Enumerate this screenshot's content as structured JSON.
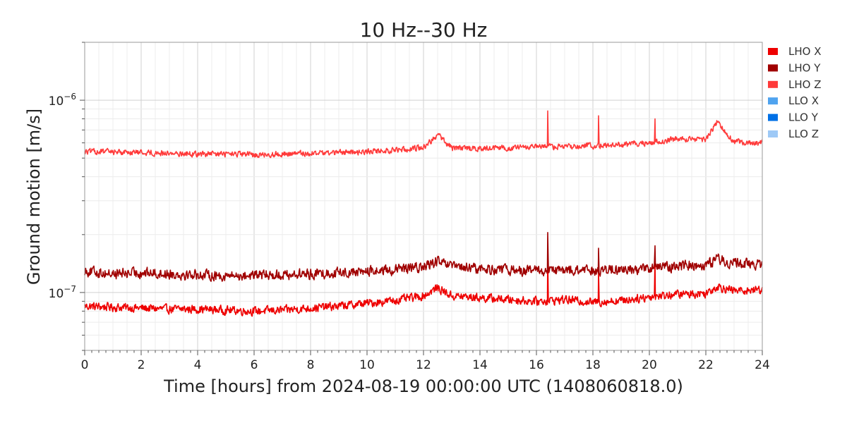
{
  "chart_data": {
    "type": "line",
    "title": "10 Hz--30 Hz",
    "xlabel": "Time [hours] from 2024-08-19 00:00:00 UTC (1408060818.0)",
    "ylabel": "Ground motion [m/s]",
    "xlim": [
      0,
      24
    ],
    "ylim": [
      5e-08,
      2e-06
    ],
    "yscale": "log",
    "x_ticks": [
      0,
      2,
      4,
      6,
      8,
      10,
      12,
      14,
      16,
      18,
      20,
      22,
      24
    ],
    "y_ticks": [
      {
        "value": 1e-07,
        "base": "10",
        "exp": "−7"
      },
      {
        "value": 1e-06,
        "base": "10",
        "exp": "−6"
      }
    ],
    "grid": true,
    "legend_position": "outside-right",
    "series": [
      {
        "name": "LHO X",
        "color": "#ee0000",
        "x": [
          0,
          1,
          2,
          3,
          4,
          5,
          6,
          7,
          8,
          9,
          10,
          11,
          12,
          12.5,
          13,
          14,
          15,
          16,
          16.4,
          17,
          18,
          18.2,
          19,
          20,
          20.2,
          21,
          22,
          22.4,
          23,
          24
        ],
        "y": [
          8.5e-08,
          8.4e-08,
          8.3e-08,
          8.2e-08,
          8.2e-08,
          8.1e-08,
          8e-08,
          8.1e-08,
          8.3e-08,
          8.5e-08,
          8.8e-08,
          9.1e-08,
          9.6e-08,
          1.06e-07,
          9.6e-08,
          9.4e-08,
          9.2e-08,
          9e-08,
          1.6e-07,
          9.2e-08,
          8.9e-08,
          1.3e-07,
          9.1e-08,
          9.5e-08,
          1.5e-07,
          9.8e-08,
          9.9e-08,
          1.08e-07,
          1.02e-07,
          1.04e-07
        ]
      },
      {
        "name": "LHO Y",
        "color": "#a00000",
        "x": [
          0,
          1,
          2,
          3,
          4,
          5,
          6,
          7,
          8,
          9,
          10,
          11,
          12,
          12.5,
          13,
          14,
          15,
          16,
          16.4,
          17,
          18,
          18.2,
          19,
          20,
          20.2,
          21,
          22,
          22.4,
          23,
          24
        ],
        "y": [
          1.3e-07,
          1.25e-07,
          1.27e-07,
          1.25e-07,
          1.24e-07,
          1.22e-07,
          1.23e-07,
          1.24e-07,
          1.25e-07,
          1.27e-07,
          1.29e-07,
          1.31e-07,
          1.36e-07,
          1.45e-07,
          1.36e-07,
          1.33e-07,
          1.31e-07,
          1.3e-07,
          2.05e-07,
          1.3e-07,
          1.3e-07,
          1.7e-07,
          1.31e-07,
          1.34e-07,
          1.75e-07,
          1.38e-07,
          1.4e-07,
          1.5e-07,
          1.42e-07,
          1.4e-07
        ]
      },
      {
        "name": "LHO Z",
        "color": "#ff3a3a",
        "x": [
          0,
          1,
          2,
          3,
          4,
          5,
          6,
          7,
          8,
          9,
          10,
          11,
          12,
          12.5,
          13,
          14,
          15,
          16,
          16.4,
          17,
          18,
          18.2,
          19,
          20,
          20.2,
          21,
          22,
          22.4,
          23,
          24
        ],
        "y": [
          5.4e-07,
          5.4e-07,
          5.35e-07,
          5.3e-07,
          5.25e-07,
          5.25e-07,
          5.2e-07,
          5.25e-07,
          5.3e-07,
          5.35e-07,
          5.4e-07,
          5.5e-07,
          5.7e-07,
          6.6e-07,
          5.65e-07,
          5.6e-07,
          5.65e-07,
          5.7e-07,
          8.8e-07,
          5.75e-07,
          5.8e-07,
          8.3e-07,
          5.85e-07,
          6e-07,
          8e-07,
          6.3e-07,
          6.2e-07,
          7.7e-07,
          6.1e-07,
          6e-07
        ]
      },
      {
        "name": "LLO X",
        "color": "#4fa3ef",
        "x": [],
        "y": []
      },
      {
        "name": "LLO Y",
        "color": "#0070e6",
        "x": [],
        "y": []
      },
      {
        "name": "LLO Z",
        "color": "#9ec9f6",
        "x": [],
        "y": []
      }
    ]
  }
}
